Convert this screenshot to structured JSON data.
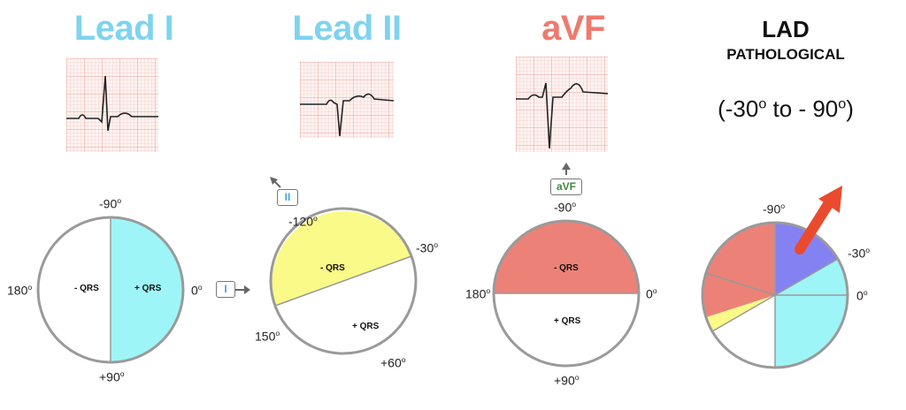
{
  "panels": {
    "lead1": {
      "title": "Lead I",
      "neg": "- QRS",
      "pos": "+ QRS",
      "lbl_top": "-90",
      "lbl_left": "180",
      "lbl_right": "0",
      "lbl_bottom": "+90",
      "lead_label": "I"
    },
    "lead2": {
      "title": "Lead II",
      "neg": "- QRS",
      "pos": "+ QRS",
      "lbl_m120": "-120",
      "lbl_m30": "-30",
      "lbl_150": "150",
      "lbl_p60": "+60",
      "lead_label": "II"
    },
    "avf": {
      "title": "aVF",
      "neg": "- QRS",
      "pos": "+ QRS",
      "lbl_top": "-90",
      "lbl_left": "180",
      "lbl_right": "0",
      "lbl_bottom": "+90",
      "lead_label": "aVF"
    },
    "lad": {
      "title": "LAD",
      "subtitle": "PATHOLOGICAL",
      "range_a": "(-30",
      "range_mid": " to - 90",
      "range_end": ")",
      "deg": "o",
      "lbl_top": "-90",
      "lbl_m30": "-30",
      "lbl_right": "0"
    }
  },
  "degree_symbol": "o",
  "colors": {
    "lead_blue": "#7fd3ef",
    "avf_red": "#ef7a6e",
    "positive_cyan": "#9ef5f7",
    "negative_yellow": "#fafa88",
    "sector_red": "#ec8277",
    "sector_blue": "#8482f2",
    "arrow_red": "#ea4a2e"
  }
}
